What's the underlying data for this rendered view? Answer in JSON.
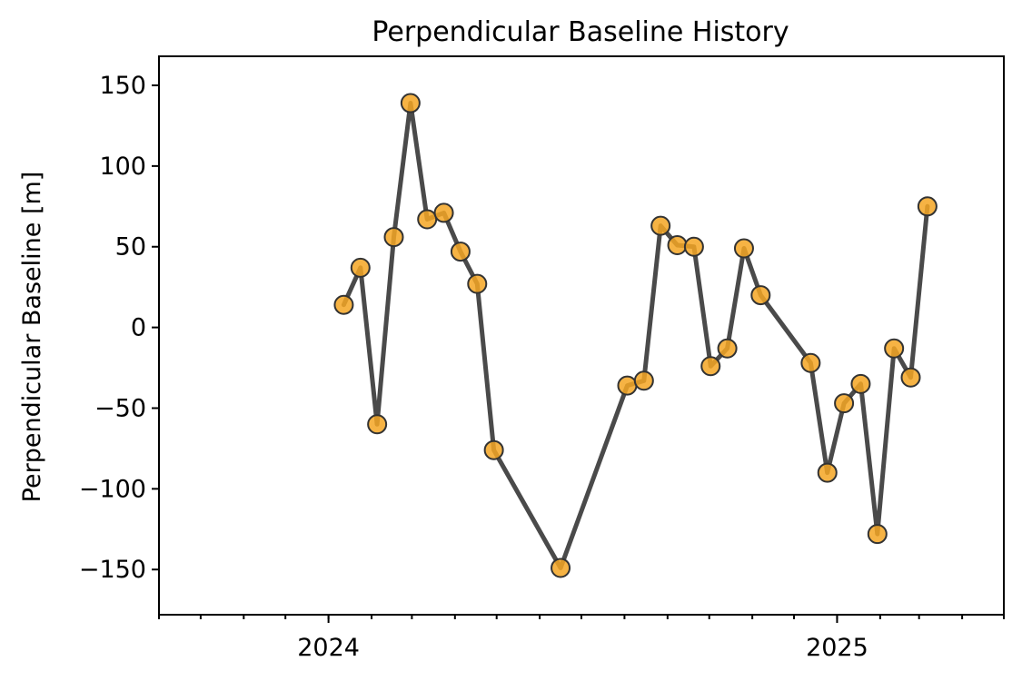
{
  "chart_data": {
    "type": "line",
    "title": "Perpendicular Baseline History",
    "xlabel": "",
    "ylabel": "Perpendicular Baseline [m]",
    "ylim": [
      -178,
      168
    ],
    "xlim": [
      "2023-09-01",
      "2025-05-01"
    ],
    "yticks": [
      150,
      100,
      50,
      0,
      -50,
      -100,
      -150
    ],
    "ytick_labels": [
      "150",
      "100",
      "50",
      "0",
      "−50",
      "−100",
      "−150"
    ],
    "xticks_major": [
      "2024-01-01",
      "2025-01-01"
    ],
    "xtick_labels": [
      "2024",
      "2025"
    ],
    "xticks_minor_monthly": true,
    "grid": false,
    "legend": "none",
    "line_color": "#4a4a4a",
    "marker_color": "#f5a623",
    "marker_edge_color": "#333333",
    "series": [
      {
        "points": [
          {
            "x": "2024-01-12",
            "y": 14
          },
          {
            "x": "2024-01-24",
            "y": 37
          },
          {
            "x": "2024-02-05",
            "y": -60
          },
          {
            "x": "2024-02-17",
            "y": 56
          },
          {
            "x": "2024-02-29",
            "y": 139
          },
          {
            "x": "2024-03-12",
            "y": 67
          },
          {
            "x": "2024-03-24",
            "y": 71
          },
          {
            "x": "2024-04-05",
            "y": 47
          },
          {
            "x": "2024-04-17",
            "y": 27
          },
          {
            "x": "2024-04-29",
            "y": -76
          },
          {
            "x": "2024-06-16",
            "y": -149
          },
          {
            "x": "2024-08-03",
            "y": -36
          },
          {
            "x": "2024-08-15",
            "y": -33
          },
          {
            "x": "2024-08-27",
            "y": 63
          },
          {
            "x": "2024-09-08",
            "y": 51
          },
          {
            "x": "2024-09-20",
            "y": 50
          },
          {
            "x": "2024-10-02",
            "y": -24
          },
          {
            "x": "2024-10-14",
            "y": -13
          },
          {
            "x": "2024-10-26",
            "y": 49
          },
          {
            "x": "2024-11-07",
            "y": 20
          },
          {
            "x": "2024-12-13",
            "y": -22
          },
          {
            "x": "2024-12-25",
            "y": -90
          },
          {
            "x": "2025-01-06",
            "y": -47
          },
          {
            "x": "2025-01-18",
            "y": -35
          },
          {
            "x": "2025-01-30",
            "y": -128
          },
          {
            "x": "2025-02-11",
            "y": -13
          },
          {
            "x": "2025-02-23",
            "y": -31
          },
          {
            "x": "2025-03-07",
            "y": 75
          }
        ]
      }
    ]
  }
}
